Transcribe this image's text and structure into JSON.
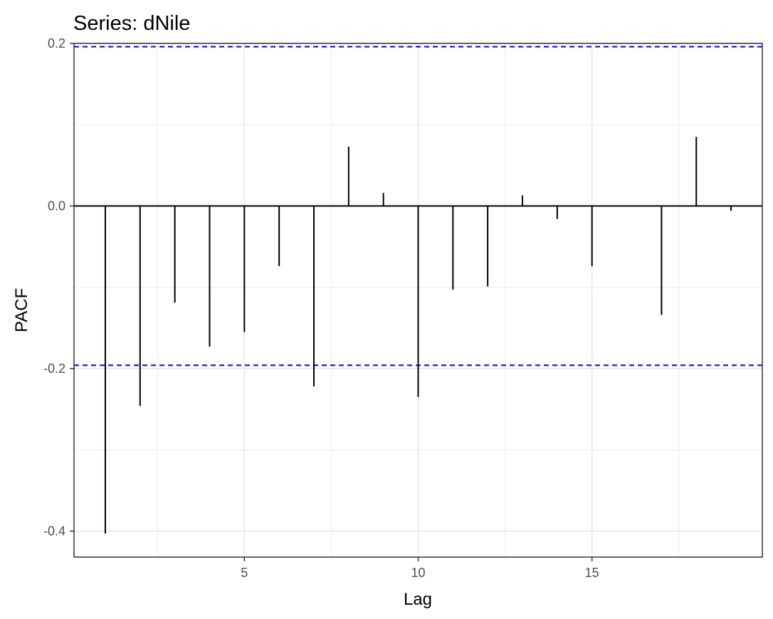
{
  "chart_data": {
    "type": "bar",
    "title": "Series: dNile",
    "xlabel": "Lag",
    "ylabel": "PACF",
    "x": [
      1,
      2,
      3,
      4,
      5,
      6,
      7,
      8,
      9,
      10,
      11,
      12,
      13,
      14,
      15,
      16,
      17,
      18,
      19
    ],
    "values": [
      -0.403,
      -0.246,
      -0.119,
      -0.173,
      -0.155,
      -0.074,
      -0.222,
      0.073,
      0.016,
      -0.235,
      -0.103,
      -0.099,
      0.013,
      -0.016,
      -0.074,
      0.0,
      -0.134,
      0.085,
      -0.006
    ],
    "confidence_bound": 0.196,
    "xlim": [
      0.1,
      19.9
    ],
    "ylim": [
      -0.432,
      0.2
    ],
    "x_ticks": [
      5,
      10,
      15
    ],
    "x_tick_labels": [
      "5",
      "10",
      "15"
    ],
    "y_ticks": [
      -0.4,
      -0.2,
      0.0,
      0.2
    ],
    "y_tick_labels": [
      "-0.4",
      "-0.2",
      "0.0",
      "0.2"
    ],
    "grid": true,
    "legend": "none",
    "colors": {
      "bars": "#000000",
      "confidence_lines": "#0000ff",
      "grid": "#ebebeb",
      "panel_border": "#333333"
    }
  }
}
